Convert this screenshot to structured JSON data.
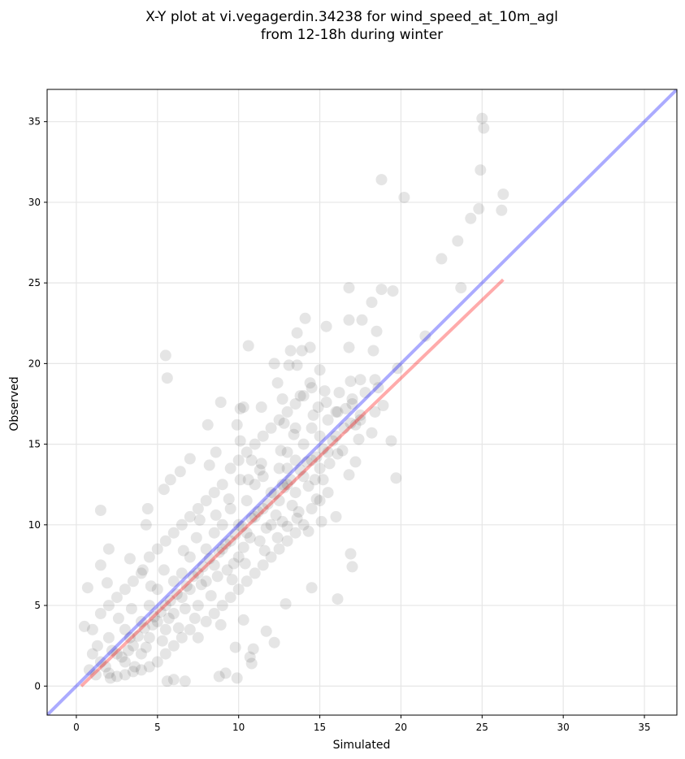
{
  "chart_data": {
    "type": "scatter",
    "title_line1": "X-Y plot at vi.vegagerdin.34238 for wind_speed_at_10m_agl",
    "title_line2": "from 12-18h during winter",
    "xlabel": "Simulated",
    "ylabel": "Observed",
    "xlim": [
      -1.8,
      37
    ],
    "ylim": [
      -1.8,
      37
    ],
    "xticks": [
      0,
      5,
      10,
      15,
      20,
      25,
      30,
      35
    ],
    "yticks": [
      0,
      5,
      10,
      15,
      20,
      25,
      30,
      35
    ],
    "grid": true,
    "point_color": "#333333",
    "point_opacity": 0.13,
    "reference_line": {
      "name": "1:1",
      "color": "#0000ff",
      "opacity": 0.33,
      "from": [
        -1.8,
        -1.8
      ],
      "to": [
        37,
        37
      ]
    },
    "fit_line": {
      "name": "fit",
      "color": "#ff0000",
      "opacity": 0.33,
      "from": [
        0.3,
        0.0
      ],
      "to": [
        26.3,
        25.2
      ]
    },
    "points": [
      [
        25.0,
        35.2
      ],
      [
        25.1,
        34.6
      ],
      [
        24.9,
        32.0
      ],
      [
        18.8,
        31.4
      ],
      [
        20.2,
        30.3
      ],
      [
        26.3,
        30.5
      ],
      [
        26.2,
        29.5
      ],
      [
        24.8,
        29.6
      ],
      [
        24.3,
        29.0
      ],
      [
        23.5,
        27.6
      ],
      [
        22.5,
        26.5
      ],
      [
        23.7,
        24.7
      ],
      [
        16.8,
        24.7
      ],
      [
        18.8,
        24.6
      ],
      [
        19.5,
        24.5
      ],
      [
        18.2,
        23.8
      ],
      [
        14.1,
        22.8
      ],
      [
        16.8,
        22.7
      ],
      [
        17.6,
        22.7
      ],
      [
        15.4,
        22.3
      ],
      [
        18.5,
        22.0
      ],
      [
        13.6,
        21.9
      ],
      [
        21.5,
        21.7
      ],
      [
        10.6,
        21.1
      ],
      [
        16.8,
        21.0
      ],
      [
        14.4,
        21.0
      ],
      [
        13.9,
        20.8
      ],
      [
        18.3,
        20.8
      ],
      [
        13.2,
        20.8
      ],
      [
        5.5,
        20.5
      ],
      [
        5.6,
        19.1
      ],
      [
        12.2,
        20.0
      ],
      [
        13.1,
        19.9
      ],
      [
        13.6,
        19.9
      ],
      [
        15.0,
        19.6
      ],
      [
        19.8,
        19.7
      ],
      [
        17.5,
        19.0
      ],
      [
        18.4,
        19.0
      ],
      [
        16.9,
        18.9
      ],
      [
        14.4,
        18.8
      ],
      [
        12.4,
        18.8
      ],
      [
        15.3,
        18.3
      ],
      [
        13.8,
        18.0
      ],
      [
        18.6,
        18.5
      ],
      [
        17.0,
        17.8
      ],
      [
        12.7,
        17.8
      ],
      [
        8.9,
        17.6
      ],
      [
        10.1,
        17.2
      ],
      [
        10.3,
        17.3
      ],
      [
        11.4,
        17.3
      ],
      [
        14.9,
        17.3
      ],
      [
        16.1,
        17.0
      ],
      [
        18.9,
        17.4
      ],
      [
        17.5,
        16.8
      ],
      [
        8.1,
        16.2
      ],
      [
        9.9,
        16.2
      ],
      [
        12.8,
        16.3
      ],
      [
        16.9,
        16.3
      ],
      [
        13.5,
        16.0
      ],
      [
        18.2,
        15.7
      ],
      [
        19.4,
        15.2
      ],
      [
        17.4,
        15.3
      ],
      [
        10.1,
        15.2
      ],
      [
        8.6,
        14.5
      ],
      [
        7.0,
        14.1
      ],
      [
        10.8,
        14.0
      ],
      [
        16.1,
        14.4
      ],
      [
        13.0,
        13.5
      ],
      [
        11.3,
        13.4
      ],
      [
        8.2,
        13.7
      ],
      [
        6.4,
        13.3
      ],
      [
        17.2,
        13.9
      ],
      [
        16.8,
        13.1
      ],
      [
        19.7,
        12.9
      ],
      [
        5.8,
        12.8
      ],
      [
        10.1,
        12.8
      ],
      [
        12.7,
        12.5
      ],
      [
        5.4,
        12.2
      ],
      [
        4.4,
        11.0
      ],
      [
        1.5,
        10.9
      ],
      [
        4.3,
        10.0
      ],
      [
        15.1,
        10.2
      ],
      [
        16.0,
        10.5
      ],
      [
        7.6,
        10.3
      ],
      [
        13.0,
        9.9
      ],
      [
        14.3,
        9.6
      ],
      [
        2.0,
        8.5
      ],
      [
        3.3,
        7.9
      ],
      [
        1.5,
        7.5
      ],
      [
        16.9,
        8.2
      ],
      [
        17.0,
        7.4
      ],
      [
        4.1,
        7.2
      ],
      [
        1.9,
        6.4
      ],
      [
        0.7,
        6.1
      ],
      [
        14.5,
        6.1
      ],
      [
        16.1,
        5.4
      ],
      [
        12.9,
        5.1
      ],
      [
        0.5,
        3.7
      ],
      [
        10.9,
        2.3
      ],
      [
        9.8,
        2.4
      ],
      [
        10.7,
        1.8
      ],
      [
        10.8,
        1.4
      ],
      [
        9.2,
        0.8
      ],
      [
        9.9,
        0.5
      ],
      [
        8.8,
        0.6
      ],
      [
        6.0,
        0.4
      ],
      [
        6.7,
        0.3
      ],
      [
        2.1,
        0.5
      ],
      [
        5.6,
        0.3
      ],
      [
        11.7,
        3.4
      ],
      [
        12.2,
        2.7
      ],
      [
        8.9,
        3.8
      ],
      [
        10.3,
        4.1
      ],
      [
        1.3,
        2.5
      ],
      [
        1.5,
        1.5
      ],
      [
        2.0,
        3.0
      ],
      [
        2.5,
        2.0
      ],
      [
        3.0,
        1.5
      ],
      [
        3.0,
        3.5
      ],
      [
        3.5,
        2.5
      ],
      [
        4.0,
        4.0
      ],
      [
        4.0,
        2.0
      ],
      [
        4.5,
        3.0
      ],
      [
        4.5,
        5.0
      ],
      [
        5.0,
        4.0
      ],
      [
        5.0,
        6.0
      ],
      [
        5.5,
        5.0
      ],
      [
        5.5,
        3.5
      ],
      [
        6.0,
        6.5
      ],
      [
        6.0,
        4.5
      ],
      [
        6.5,
        5.5
      ],
      [
        6.5,
        7.0
      ],
      [
        7.0,
        6.0
      ],
      [
        7.0,
        8.0
      ],
      [
        7.5,
        7.0
      ],
      [
        7.5,
        5.0
      ],
      [
        8.0,
        8.5
      ],
      [
        8.0,
        6.5
      ],
      [
        8.5,
        7.5
      ],
      [
        8.5,
        9.5
      ],
      [
        9.0,
        8.5
      ],
      [
        9.0,
        10.0
      ],
      [
        9.5,
        9.0
      ],
      [
        9.5,
        11.0
      ],
      [
        10.0,
        10.0
      ],
      [
        10.0,
        8.0
      ],
      [
        10.5,
        11.5
      ],
      [
        10.5,
        9.5
      ],
      [
        11.0,
        10.5
      ],
      [
        11.0,
        12.5
      ],
      [
        11.5,
        11.0
      ],
      [
        11.5,
        13.0
      ],
      [
        12.0,
        12.0
      ],
      [
        12.0,
        10.0
      ],
      [
        12.5,
        13.5
      ],
      [
        12.5,
        11.5
      ],
      [
        13.0,
        12.5
      ],
      [
        13.0,
        14.5
      ],
      [
        13.5,
        14.0
      ],
      [
        13.5,
        12.0
      ],
      [
        14.0,
        15.0
      ],
      [
        14.0,
        13.0
      ],
      [
        14.5,
        14.0
      ],
      [
        14.5,
        16.0
      ],
      [
        15.0,
        15.5
      ],
      [
        15.0,
        13.5
      ],
      [
        15.5,
        16.5
      ],
      [
        15.5,
        14.5
      ],
      [
        16.0,
        15.5
      ],
      [
        16.0,
        17.0
      ],
      [
        16.5,
        16.0
      ],
      [
        17.0,
        17.5
      ],
      [
        17.5,
        16.5
      ],
      [
        2.0,
        0.8
      ],
      [
        2.5,
        0.6
      ],
      [
        3.0,
        0.7
      ],
      [
        3.5,
        0.9
      ],
      [
        4.0,
        1.0
      ],
      [
        4.5,
        1.2
      ],
      [
        5.0,
        1.5
      ],
      [
        5.5,
        2.0
      ],
      [
        6.0,
        2.5
      ],
      [
        6.5,
        3.0
      ],
      [
        7.0,
        3.5
      ],
      [
        7.5,
        3.0
      ],
      [
        8.0,
        4.0
      ],
      [
        8.5,
        4.5
      ],
      [
        9.0,
        5.0
      ],
      [
        9.5,
        5.5
      ],
      [
        10.0,
        6.0
      ],
      [
        10.5,
        6.5
      ],
      [
        11.0,
        7.0
      ],
      [
        11.5,
        7.5
      ],
      [
        12.0,
        8.0
      ],
      [
        12.5,
        8.5
      ],
      [
        13.0,
        9.0
      ],
      [
        13.5,
        9.5
      ],
      [
        14.0,
        10.0
      ],
      [
        14.5,
        11.0
      ],
      [
        15.0,
        11.5
      ],
      [
        15.5,
        12.0
      ],
      [
        1.0,
        3.5
      ],
      [
        1.5,
        4.5
      ],
      [
        2.0,
        5.0
      ],
      [
        2.5,
        5.5
      ],
      [
        3.0,
        6.0
      ],
      [
        3.5,
        6.5
      ],
      [
        4.0,
        7.0
      ],
      [
        4.5,
        8.0
      ],
      [
        5.0,
        8.5
      ],
      [
        5.5,
        9.0
      ],
      [
        6.0,
        9.5
      ],
      [
        6.5,
        10.0
      ],
      [
        7.0,
        10.5
      ],
      [
        7.5,
        11.0
      ],
      [
        8.0,
        11.5
      ],
      [
        8.5,
        12.0
      ],
      [
        9.0,
        12.5
      ],
      [
        9.5,
        13.5
      ],
      [
        10.0,
        14.0
      ],
      [
        10.5,
        14.5
      ],
      [
        11.0,
        15.0
      ],
      [
        11.5,
        15.5
      ],
      [
        12.0,
        16.0
      ],
      [
        12.5,
        16.5
      ],
      [
        13.0,
        17.0
      ],
      [
        13.5,
        17.5
      ],
      [
        14.0,
        18.0
      ],
      [
        14.5,
        18.5
      ],
      [
        3.2,
        2.2
      ],
      [
        3.8,
        3.1
      ],
      [
        4.2,
        3.6
      ],
      [
        4.8,
        4.3
      ],
      [
        5.2,
        4.6
      ],
      [
        5.8,
        5.3
      ],
      [
        6.2,
        5.7
      ],
      [
        6.8,
        6.2
      ],
      [
        7.2,
        6.8
      ],
      [
        7.8,
        7.4
      ],
      [
        8.2,
        7.9
      ],
      [
        8.8,
        8.3
      ],
      [
        9.2,
        8.8
      ],
      [
        9.8,
        9.4
      ],
      [
        10.2,
        9.9
      ],
      [
        10.8,
        10.4
      ],
      [
        11.2,
        10.8
      ],
      [
        11.8,
        11.3
      ],
      [
        12.2,
        11.9
      ],
      [
        12.8,
        12.3
      ],
      [
        13.2,
        12.8
      ],
      [
        13.8,
        13.4
      ],
      [
        14.2,
        13.9
      ],
      [
        14.8,
        14.2
      ],
      [
        15.2,
        14.7
      ],
      [
        15.8,
        15.2
      ],
      [
        0.8,
        1.0
      ],
      [
        1.0,
        2.0
      ],
      [
        1.2,
        0.7
      ],
      [
        1.8,
        1.2
      ],
      [
        2.2,
        2.2
      ],
      [
        2.8,
        1.8
      ],
      [
        3.3,
        3.0
      ],
      [
        3.6,
        1.2
      ],
      [
        4.3,
        2.4
      ],
      [
        4.7,
        3.8
      ],
      [
        5.3,
        2.8
      ],
      [
        5.7,
        4.2
      ],
      [
        6.3,
        3.6
      ],
      [
        6.7,
        4.8
      ],
      [
        7.3,
        4.2
      ],
      [
        7.7,
        6.3
      ],
      [
        8.3,
        5.6
      ],
      [
        8.7,
        6.8
      ],
      [
        9.3,
        7.2
      ],
      [
        9.7,
        7.6
      ],
      [
        10.3,
        8.6
      ],
      [
        10.7,
        9.2
      ],
      [
        11.3,
        9.0
      ],
      [
        11.7,
        9.8
      ],
      [
        12.3,
        10.6
      ],
      [
        12.7,
        10.2
      ],
      [
        13.3,
        11.2
      ],
      [
        13.7,
        10.8
      ],
      [
        14.3,
        12.4
      ],
      [
        14.7,
        12.8
      ],
      [
        2.6,
        4.2
      ],
      [
        3.4,
        4.8
      ],
      [
        4.6,
        6.2
      ],
      [
        5.4,
        7.2
      ],
      [
        6.6,
        8.4
      ],
      [
        7.4,
        9.2
      ],
      [
        8.6,
        10.6
      ],
      [
        9.4,
        11.6
      ],
      [
        10.6,
        12.8
      ],
      [
        11.4,
        13.8
      ],
      [
        12.6,
        14.6
      ],
      [
        13.4,
        15.6
      ],
      [
        14.6,
        16.8
      ],
      [
        15.4,
        17.6
      ],
      [
        16.2,
        18.2
      ],
      [
        16.6,
        17.2
      ],
      [
        17.8,
        18.2
      ],
      [
        18.4,
        17.0
      ],
      [
        17.2,
        16.2
      ],
      [
        16.4,
        14.6
      ],
      [
        15.6,
        13.8
      ],
      [
        15.2,
        12.8
      ],
      [
        14.8,
        11.6
      ],
      [
        13.6,
        10.4
      ],
      [
        12.4,
        9.2
      ],
      [
        11.6,
        8.4
      ],
      [
        10.4,
        7.6
      ],
      [
        9.6,
        6.6
      ]
    ]
  }
}
